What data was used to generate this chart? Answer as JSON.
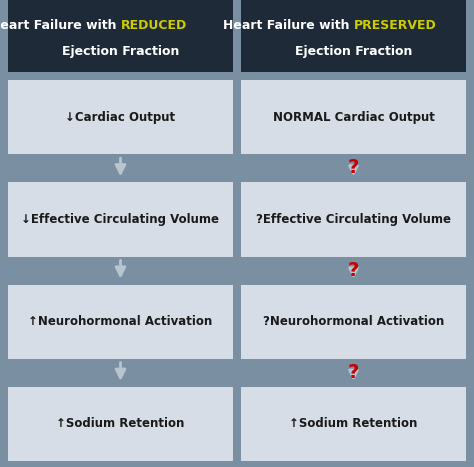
{
  "bg_color": "#7b8fa3",
  "header_bg": "#1e2a38",
  "box_bg": "#d6dde6",
  "header_text_color": "#ffffff",
  "box_text_color": "#1a1a1a",
  "reduced_keyword_color": "#cccc00",
  "preserved_keyword_color": "#cccc00",
  "arrow_color": "#b8c4ce",
  "question_color": "#cc0000",
  "left_boxes": [
    "↓Cardiac Output",
    "↓Effective Circulating Volume",
    "↑Neurohormonal Activation",
    "↑Sodium Retention"
  ],
  "right_boxes": [
    "NORMAL Cardiac Output",
    "?Effective Circulating Volume",
    "?Neurohormonal Activation",
    "↑Sodium Retention"
  ],
  "fig_w": 4.74,
  "fig_h": 4.67,
  "dpi": 100
}
